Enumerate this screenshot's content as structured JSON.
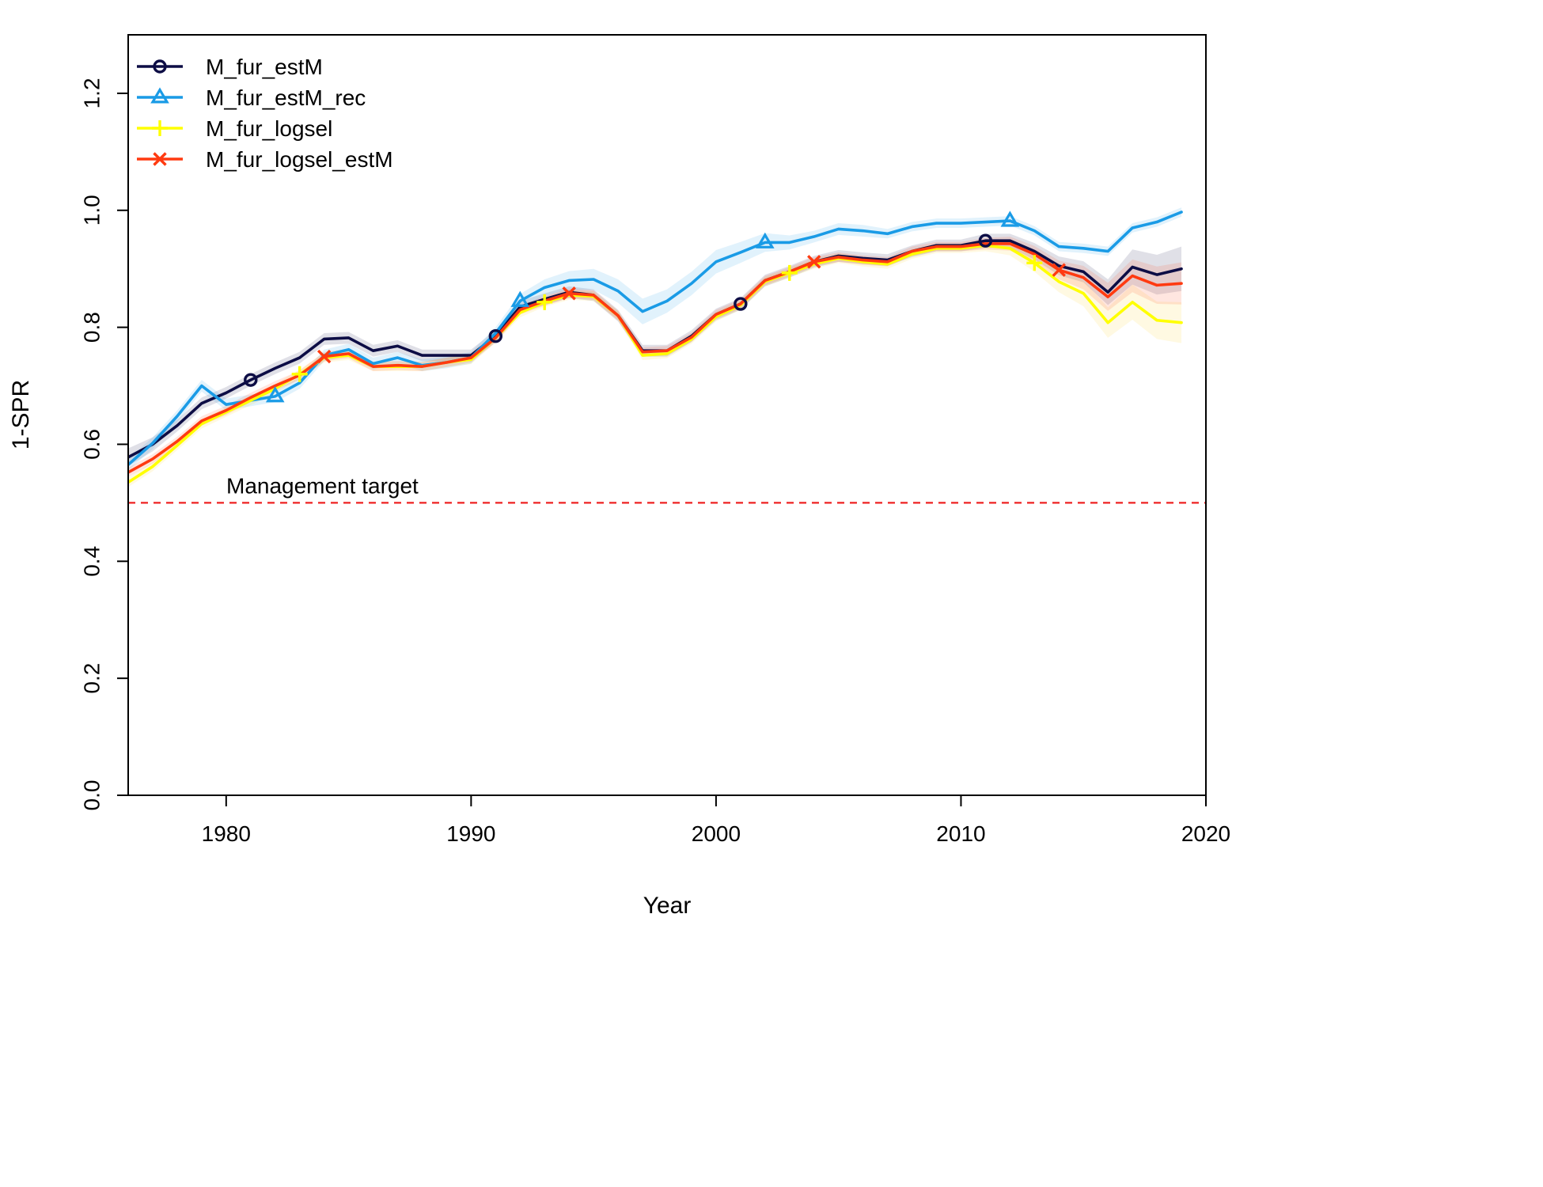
{
  "chart_data": {
    "type": "line",
    "title": "",
    "xlabel": "Year",
    "ylabel": "1-SPR",
    "xlim": [
      1976,
      2020
    ],
    "ylim": [
      0,
      1.3
    ],
    "x_ticks": [
      1980,
      1990,
      2000,
      2010,
      2020
    ],
    "y_ticks": [
      0.0,
      0.2,
      0.4,
      0.6,
      0.8,
      1.0,
      1.2
    ],
    "x_tick_labels": [
      "1980",
      "1990",
      "2000",
      "2010",
      "2020"
    ],
    "y_tick_labels": [
      "0.0",
      "0.2",
      "0.4",
      "0.6",
      "0.8",
      "1.0",
      "1.2"
    ],
    "grid": false,
    "legend_position": "top-left",
    "x": [
      1976,
      1977,
      1978,
      1979,
      1980,
      1981,
      1982,
      1983,
      1984,
      1985,
      1986,
      1987,
      1988,
      1989,
      1990,
      1991,
      1992,
      1993,
      1994,
      1995,
      1996,
      1997,
      1998,
      1999,
      2000,
      2001,
      2002,
      2003,
      2004,
      2005,
      2006,
      2007,
      2008,
      2009,
      2010,
      2011,
      2012,
      2013,
      2014,
      2015,
      2016,
      2017,
      2018,
      2019
    ],
    "series": [
      {
        "name": "M_fur_estM",
        "color": "#0d0d45",
        "marker": "circle",
        "marker_x": [
          1981,
          1991,
          2001,
          2011
        ],
        "band_color": "#0d0d45",
        "values": [
          0.578,
          0.6,
          0.632,
          0.67,
          0.688,
          0.71,
          0.73,
          0.748,
          0.78,
          0.782,
          0.76,
          0.768,
          0.752,
          0.752,
          0.752,
          0.785,
          0.835,
          0.848,
          0.86,
          0.855,
          0.82,
          0.76,
          0.76,
          0.785,
          0.822,
          0.84,
          0.88,
          0.895,
          0.912,
          0.922,
          0.918,
          0.915,
          0.93,
          0.94,
          0.94,
          0.948,
          0.948,
          0.93,
          0.905,
          0.895,
          0.86,
          0.903,
          0.89,
          0.9
        ],
        "band": [
          0.015,
          0.012,
          0.01,
          0.01,
          0.01,
          0.01,
          0.01,
          0.01,
          0.01,
          0.01,
          0.01,
          0.01,
          0.01,
          0.01,
          0.01,
          0.01,
          0.01,
          0.01,
          0.01,
          0.01,
          0.01,
          0.01,
          0.01,
          0.01,
          0.01,
          0.01,
          0.01,
          0.01,
          0.01,
          0.01,
          0.01,
          0.01,
          0.01,
          0.01,
          0.01,
          0.012,
          0.012,
          0.014,
          0.016,
          0.018,
          0.022,
          0.03,
          0.034,
          0.038
        ]
      },
      {
        "name": "M_fur_estM_rec",
        "color": "#1a9be6",
        "marker": "triangle",
        "marker_x": [
          1982,
          1992,
          2002,
          2012
        ],
        "band_color": "#1a9be6",
        "values": [
          0.565,
          0.602,
          0.648,
          0.7,
          0.668,
          0.675,
          0.682,
          0.705,
          0.752,
          0.762,
          0.738,
          0.748,
          0.735,
          0.74,
          0.748,
          0.79,
          0.845,
          0.868,
          0.88,
          0.882,
          0.862,
          0.827,
          0.845,
          0.875,
          0.912,
          0.928,
          0.945,
          0.945,
          0.955,
          0.968,
          0.965,
          0.96,
          0.972,
          0.978,
          0.978,
          0.98,
          0.982,
          0.965,
          0.938,
          0.935,
          0.93,
          0.97,
          0.98,
          0.997
        ],
        "band": [
          0.01,
          0.01,
          0.01,
          0.01,
          0.01,
          0.01,
          0.01,
          0.01,
          0.01,
          0.01,
          0.01,
          0.01,
          0.01,
          0.01,
          0.01,
          0.01,
          0.012,
          0.014,
          0.016,
          0.018,
          0.02,
          0.022,
          0.02,
          0.02,
          0.02,
          0.018,
          0.016,
          0.012,
          0.01,
          0.01,
          0.01,
          0.008,
          0.008,
          0.008,
          0.008,
          0.008,
          0.008,
          0.008,
          0.008,
          0.008,
          0.008,
          0.008,
          0.008,
          0.008
        ]
      },
      {
        "name": "M_fur_logsel",
        "color": "#ffff00",
        "marker": "plus",
        "marker_x": [
          1983,
          1993,
          2003,
          2013
        ],
        "band_color": "#ffd21f",
        "values": [
          0.535,
          0.562,
          0.598,
          0.635,
          0.655,
          0.675,
          0.695,
          0.72,
          0.748,
          0.752,
          0.733,
          0.733,
          0.733,
          0.74,
          0.745,
          0.782,
          0.825,
          0.843,
          0.855,
          0.853,
          0.82,
          0.752,
          0.755,
          0.78,
          0.818,
          0.838,
          0.878,
          0.893,
          0.908,
          0.918,
          0.912,
          0.908,
          0.925,
          0.935,
          0.935,
          0.94,
          0.935,
          0.91,
          0.878,
          0.858,
          0.808,
          0.843,
          0.812,
          0.808
        ],
        "band": [
          0.008,
          0.008,
          0.008,
          0.008,
          0.008,
          0.008,
          0.008,
          0.008,
          0.008,
          0.008,
          0.008,
          0.008,
          0.008,
          0.008,
          0.008,
          0.008,
          0.008,
          0.008,
          0.008,
          0.008,
          0.008,
          0.008,
          0.008,
          0.008,
          0.008,
          0.008,
          0.008,
          0.008,
          0.008,
          0.008,
          0.008,
          0.008,
          0.008,
          0.008,
          0.008,
          0.01,
          0.012,
          0.015,
          0.018,
          0.022,
          0.026,
          0.03,
          0.032,
          0.035
        ]
      },
      {
        "name": "M_fur_logsel_estM",
        "color": "#ff3a10",
        "marker": "cross",
        "marker_x": [
          1984,
          1994,
          2004,
          2014
        ],
        "band_color": "#ff3a10",
        "values": [
          0.552,
          0.575,
          0.605,
          0.64,
          0.658,
          0.68,
          0.7,
          0.718,
          0.75,
          0.755,
          0.733,
          0.735,
          0.733,
          0.74,
          0.748,
          0.782,
          0.83,
          0.845,
          0.858,
          0.855,
          0.82,
          0.758,
          0.76,
          0.783,
          0.822,
          0.84,
          0.88,
          0.895,
          0.912,
          0.92,
          0.915,
          0.912,
          0.93,
          0.938,
          0.938,
          0.943,
          0.943,
          0.925,
          0.898,
          0.885,
          0.852,
          0.888,
          0.872,
          0.875
        ],
        "band": [
          0.008,
          0.008,
          0.008,
          0.008,
          0.008,
          0.008,
          0.008,
          0.008,
          0.008,
          0.008,
          0.008,
          0.008,
          0.008,
          0.008,
          0.008,
          0.008,
          0.008,
          0.008,
          0.008,
          0.008,
          0.008,
          0.008,
          0.008,
          0.008,
          0.008,
          0.008,
          0.008,
          0.008,
          0.008,
          0.008,
          0.008,
          0.008,
          0.008,
          0.008,
          0.008,
          0.01,
          0.012,
          0.014,
          0.016,
          0.02,
          0.024,
          0.028,
          0.032,
          0.036
        ]
      }
    ],
    "reference_line": {
      "label": "Management target",
      "y": 0.5,
      "color": "#ee2222",
      "style": "dashed"
    }
  }
}
